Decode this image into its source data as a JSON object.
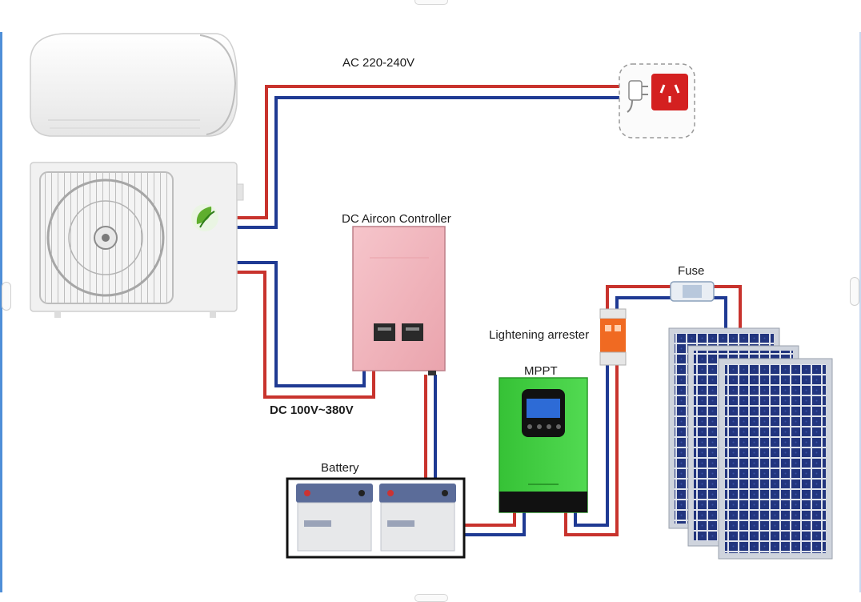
{
  "labels": {
    "ac_line": "AC 220-240V",
    "controller": "DC Aircon Controller",
    "dc_line": "DC 100V~380V",
    "battery": "Battery",
    "mppt": "MPPT",
    "arrester": "Lightening arrester",
    "fuse": "Fuse"
  },
  "colors": {
    "positive_wire": "#c8332d",
    "negative_wire": "#1f3a93",
    "controller_body": "#f2b7bf",
    "mppt_body": "#3fcf3f",
    "panel_cell": "#1f2f7a",
    "socket": "#d42020",
    "arrester": "#f06a22"
  }
}
